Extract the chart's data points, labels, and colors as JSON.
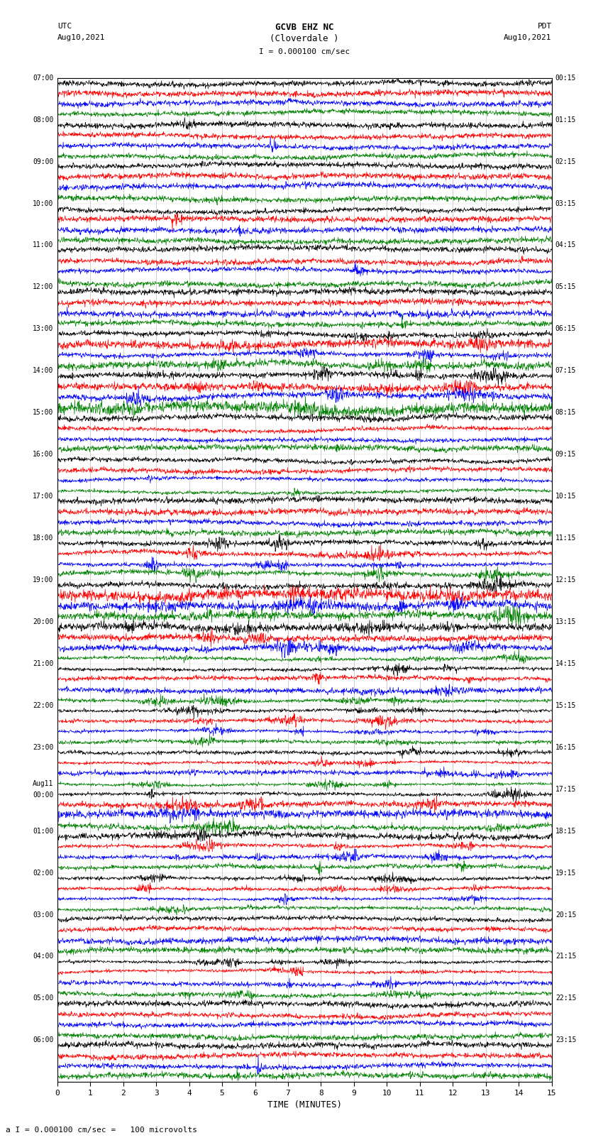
{
  "title_line1": "GCVB EHZ NC",
  "title_line2": "(Cloverdale )",
  "scale_label": "I = 0.000100 cm/sec",
  "bottom_label": "a I = 0.000100 cm/sec =   100 microvolts",
  "utc_label": "UTC",
  "utc_date": "Aug10,2021",
  "pdt_label": "PDT",
  "pdt_date": "Aug10,2021",
  "xlabel": "TIME (MINUTES)",
  "xmin": 0,
  "xmax": 15,
  "xticks": [
    0,
    1,
    2,
    3,
    4,
    5,
    6,
    7,
    8,
    9,
    10,
    11,
    12,
    13,
    14,
    15
  ],
  "fig_width": 8.5,
  "fig_height": 16.13,
  "dpi": 100,
  "background_color": "#ffffff",
  "left_times_utc": [
    "07:00",
    "08:00",
    "09:00",
    "10:00",
    "11:00",
    "12:00",
    "13:00",
    "14:00",
    "15:00",
    "16:00",
    "17:00",
    "18:00",
    "19:00",
    "20:00",
    "21:00",
    "22:00",
    "23:00",
    "Aug11\n00:00",
    "01:00",
    "02:00",
    "03:00",
    "04:00",
    "05:00",
    "06:00"
  ],
  "right_times_pdt": [
    "00:15",
    "01:15",
    "02:15",
    "03:15",
    "04:15",
    "05:15",
    "06:15",
    "07:15",
    "08:15",
    "09:15",
    "10:15",
    "11:15",
    "12:15",
    "13:15",
    "14:15",
    "15:15",
    "16:15",
    "17:15",
    "18:15",
    "19:15",
    "20:15",
    "21:15",
    "22:15",
    "23:15"
  ],
  "colors_per_group": [
    "black",
    "red",
    "blue",
    "green"
  ],
  "num_groups": 24,
  "traces_per_group": 4,
  "seed": 42,
  "active_groups": {
    "6": 1.8,
    "7": 3.5,
    "8": 1.2,
    "9": 1.2,
    "11": 2.0,
    "12": 2.5,
    "13": 2.2,
    "14": 1.5,
    "15": 1.8,
    "16": 1.5,
    "17": 2.0,
    "18": 1.8,
    "19": 1.3,
    "20": 1.2,
    "21": 1.5
  }
}
